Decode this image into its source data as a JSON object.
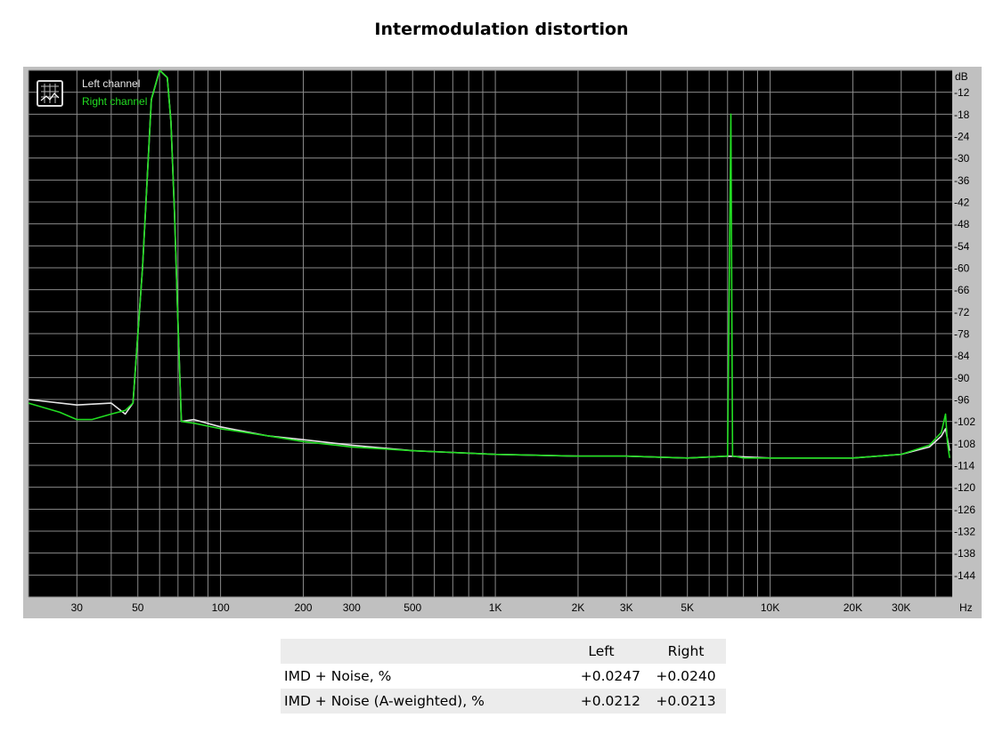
{
  "title": "Intermodulation distortion",
  "colors": {
    "left": "#e6e6e6",
    "right": "#22dd22",
    "grid": "#8a8a8a",
    "plot_bg": "#000000",
    "frame": "#c0c0c0"
  },
  "legend": {
    "icon": "chart-icon",
    "left_label": "Left channel",
    "right_label": "Right channel"
  },
  "chart_data": {
    "type": "line",
    "x_scale": "log",
    "xlim": [
      20,
      46000
    ],
    "ylim": [
      -150,
      -6
    ],
    "xunit": "Hz",
    "yunit": "dB",
    "x_tick_labels": [
      {
        "v": 30,
        "t": "30"
      },
      {
        "v": 50,
        "t": "50"
      },
      {
        "v": 100,
        "t": "100"
      },
      {
        "v": 200,
        "t": "200"
      },
      {
        "v": 300,
        "t": "300"
      },
      {
        "v": 500,
        "t": "500"
      },
      {
        "v": 1000,
        "t": "1K"
      },
      {
        "v": 2000,
        "t": "2K"
      },
      {
        "v": 3000,
        "t": "3K"
      },
      {
        "v": 5000,
        "t": "5K"
      },
      {
        "v": 10000,
        "t": "10K"
      },
      {
        "v": 20000,
        "t": "20K"
      },
      {
        "v": 30000,
        "t": "30K"
      }
    ],
    "y_ticks": [
      -12,
      -18,
      -24,
      -30,
      -36,
      -42,
      -48,
      -54,
      -60,
      -66,
      -72,
      -78,
      -84,
      -90,
      -96,
      -102,
      -108,
      -114,
      -120,
      -126,
      -132,
      -138,
      -144
    ],
    "grid": true,
    "legend_position": "top-left",
    "series": [
      {
        "name": "Left channel",
        "x": [
          20,
          30,
          40,
          45,
          48,
          52,
          56,
          60,
          64,
          66,
          68,
          70,
          72,
          80,
          100,
          150,
          200,
          300,
          500,
          1000,
          2000,
          3000,
          5000,
          7000,
          10000,
          20000,
          30000,
          38000,
          42000,
          43500,
          45000
        ],
        "y": [
          -96,
          -97.5,
          -97,
          -100,
          -97,
          -60,
          -14,
          -6,
          -8,
          -20,
          -45,
          -75,
          -102,
          -101.5,
          -103.5,
          -106,
          -107,
          -108.5,
          -110,
          -111,
          -111.5,
          -111.5,
          -112,
          -111.5,
          -112,
          -112,
          -111,
          -109,
          -106,
          -104,
          -110
        ]
      },
      {
        "name": "Right channel",
        "x": [
          20,
          26,
          30,
          34,
          40,
          45,
          48,
          52,
          56,
          60,
          64,
          66,
          68,
          70,
          72,
          80,
          100,
          150,
          200,
          300,
          500,
          1000,
          2000,
          3000,
          5000,
          7000,
          7200,
          7300,
          7400,
          8000,
          10000,
          20000,
          30000,
          38000,
          42000,
          43500,
          44200,
          45000
        ],
        "y": [
          -97,
          -99.5,
          -101.5,
          -101.5,
          -100,
          -99,
          -97,
          -60,
          -14,
          -6,
          -8,
          -20,
          -45,
          -75,
          -102,
          -102.5,
          -104,
          -106,
          -107.5,
          -109,
          -110,
          -111,
          -111.5,
          -111.5,
          -112,
          -111.5,
          -18,
          -111.5,
          -111.5,
          -112,
          -112,
          -112,
          -111,
          -108.5,
          -105,
          -100,
          -108,
          -112
        ]
      }
    ]
  },
  "results": {
    "columns": [
      "",
      "Left",
      "Right"
    ],
    "rows": [
      {
        "label": "IMD + Noise, %",
        "left": "+0.0247",
        "right": "+0.0240"
      },
      {
        "label": "IMD + Noise (A-weighted), %",
        "left": "+0.0212",
        "right": "+0.0213"
      }
    ]
  }
}
